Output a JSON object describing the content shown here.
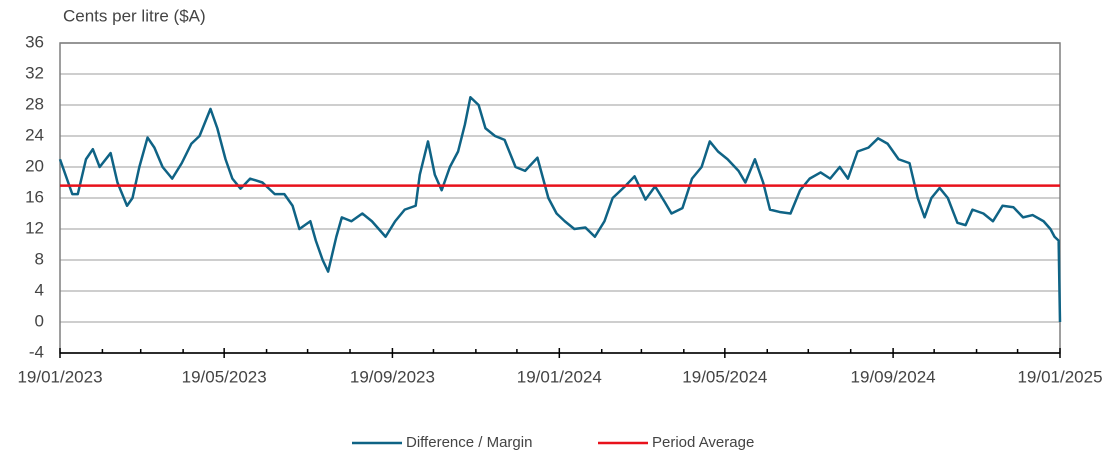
{
  "chart_data": {
    "type": "line",
    "y_label": "Cents per litre ($A)",
    "x": [
      "19/01/2023",
      "23/01/2023",
      "28/01/2023",
      "01/02/2023",
      "07/02/2023",
      "12/02/2023",
      "17/02/2023",
      "25/02/2023",
      "02/03/2023",
      "09/03/2023",
      "13/03/2023",
      "18/03/2023",
      "24/03/2023",
      "29/03/2023",
      "04/04/2023",
      "11/04/2023",
      "18/04/2023",
      "25/04/2023",
      "01/05/2023",
      "09/05/2023",
      "14/05/2023",
      "20/05/2023",
      "25/05/2023",
      "31/05/2023",
      "07/06/2023",
      "16/06/2023",
      "25/06/2023",
      "02/07/2023",
      "08/07/2023",
      "13/07/2023",
      "21/07/2023",
      "25/07/2023",
      "30/07/2023",
      "03/08/2023",
      "09/08/2023",
      "13/08/2023",
      "20/08/2023",
      "28/08/2023",
      "04/09/2023",
      "14/09/2023",
      "21/09/2023",
      "28/09/2023",
      "06/10/2023",
      "09/10/2023",
      "15/10/2023",
      "20/10/2023",
      "25/10/2023",
      "31/10/2023",
      "06/11/2023",
      "11/11/2023",
      "15/11/2023",
      "21/11/2023",
      "26/11/2023",
      "03/12/2023",
      "10/12/2023",
      "18/12/2023",
      "25/12/2023",
      "03/01/2024",
      "11/01/2024",
      "17/01/2024",
      "23/01/2024",
      "30/01/2024",
      "07/02/2024",
      "14/02/2024",
      "21/02/2024",
      "27/02/2024",
      "07/03/2024",
      "14/03/2024",
      "22/03/2024",
      "29/03/2024",
      "05/04/2024",
      "10/04/2024",
      "18/04/2024",
      "25/04/2024",
      "02/05/2024",
      "08/05/2024",
      "14/05/2024",
      "21/05/2024",
      "29/05/2024",
      "03/06/2024",
      "10/06/2024",
      "16/06/2024",
      "21/06/2024",
      "28/06/2024",
      "06/07/2024",
      "13/07/2024",
      "20/07/2024",
      "28/07/2024",
      "04/08/2024",
      "11/08/2024",
      "17/08/2024",
      "24/08/2024",
      "01/09/2024",
      "08/09/2024",
      "15/09/2024",
      "23/09/2024",
      "01/10/2024",
      "07/10/2024",
      "12/10/2024",
      "17/10/2024",
      "23/10/2024",
      "29/10/2024",
      "05/11/2024",
      "11/11/2024",
      "16/11/2024",
      "24/11/2024",
      "01/12/2024",
      "08/12/2024",
      "16/12/2024",
      "23/12/2024",
      "30/12/2024",
      "07/01/2025",
      "12/01/2025",
      "15/01/2025",
      "18/01/2025",
      "19/01/2025"
    ],
    "series": [
      {
        "name": "Difference / Margin",
        "color": "#0f6385",
        "values": [
          21,
          19,
          16.5,
          16.5,
          21,
          22.3,
          20,
          21.8,
          18,
          15,
          16,
          20,
          23.8,
          22.5,
          20,
          18.5,
          20.5,
          23,
          24,
          27.5,
          25,
          21,
          18.5,
          17.2,
          18.5,
          18,
          16.5,
          16.5,
          15,
          12,
          13,
          10.5,
          8,
          6.5,
          11,
          13.5,
          13,
          14,
          13,
          11,
          13,
          14.5,
          15,
          19,
          23.3,
          19,
          17,
          20,
          22,
          25.5,
          29,
          28,
          25,
          24,
          23.5,
          20,
          19.5,
          21.2,
          16,
          14,
          13,
          12,
          12.2,
          11,
          13,
          16,
          17.5,
          18.8,
          15.8,
          17.5,
          15.5,
          14,
          14.7,
          18.5,
          20,
          23.3,
          22,
          21,
          19.5,
          18,
          21,
          18,
          14.5,
          14.2,
          14,
          17,
          18.5,
          19.3,
          18.5,
          20,
          18.5,
          22,
          22.5,
          23.7,
          23,
          21,
          20.5,
          16,
          13.5,
          16,
          17.3,
          16,
          12.8,
          12.5,
          14.5,
          14,
          13,
          15,
          14.8,
          13.5,
          13.8,
          13,
          12,
          11,
          10.5,
          0
        ]
      }
    ],
    "average_line": {
      "name": "Period Average",
      "value": 17.6,
      "color": "#e8111b"
    },
    "xlim": [
      "19/01/2023",
      "19/01/2025"
    ],
    "xticks": [
      "19/01/2023",
      "19/05/2023",
      "19/09/2023",
      "19/01/2024",
      "19/05/2024",
      "19/09/2024",
      "19/01/2025"
    ],
    "xminorticks": [
      "19/02/2023",
      "19/03/2023",
      "19/04/2023",
      "19/06/2023",
      "19/07/2023",
      "19/08/2023",
      "19/10/2023",
      "19/11/2023",
      "19/12/2023",
      "19/02/2024",
      "19/03/2024",
      "19/04/2024",
      "19/06/2024",
      "19/07/2024",
      "19/08/2024",
      "19/10/2024",
      "19/11/2024",
      "19/12/2024"
    ],
    "ylim": [
      -4,
      36
    ],
    "yticks": [
      -4,
      0,
      4,
      8,
      12,
      16,
      20,
      24,
      28,
      32,
      36
    ],
    "grid": true,
    "legend": "bottom"
  }
}
